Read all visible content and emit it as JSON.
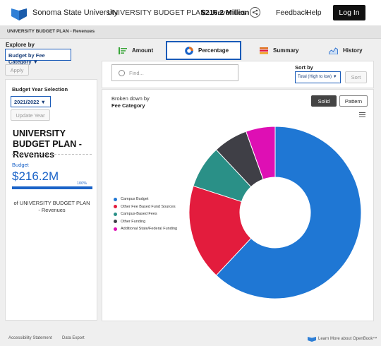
{
  "header": {
    "university": "Sonoma State University",
    "plan_title": "UNIVERSITY BUDGET PLAN - Revenues",
    "total": "$216.2 Million",
    "feedback": "Feedback",
    "help": "Help",
    "login": "Log In"
  },
  "breadcrumb": "UNIVERSITY BUDGET PLAN - Revenues",
  "explore": {
    "label": "Explore by",
    "selected": "Budget by Fee Category",
    "apply": "Apply"
  },
  "tabs": [
    {
      "label": "Amount",
      "icon": "list-icon",
      "color": "#3aa63a"
    },
    {
      "label": "Percentage",
      "icon": "donut-icon",
      "color": "#1a63c8"
    },
    {
      "label": "Summary",
      "icon": "stack-icon",
      "color": "#e07020"
    },
    {
      "label": "History",
      "icon": "area-chart-icon",
      "color": "#1a63c8"
    }
  ],
  "sidebar": {
    "year_label": "Budget Year Selection",
    "year": "2021/2022",
    "update": "Update Year",
    "title": "UNIVERSITY BUDGET PLAN - Revenues",
    "budget_label": "Budget",
    "budget_value": "$216.2M",
    "budget_percent": "100%",
    "budget_fill": 1.0,
    "note": "of UNIVERSITY BUDGET PLAN - Revenues"
  },
  "search": {
    "placeholder": "Find...",
    "sort_label": "Sort by",
    "sort_value": "Total (High to low)",
    "sort_button": "Sort"
  },
  "chart_panel": {
    "broken_down": "Broken down by",
    "category": "Fee Category",
    "solid": "Solid",
    "pattern": "Pattern"
  },
  "chart_data": {
    "type": "pie",
    "donut": true,
    "categories": [
      "Campus Budget",
      "Other Fee Based Fund Sources",
      "Campus-Based Fees",
      "Other Funding",
      "Additional State/Federal Funding"
    ],
    "values": [
      62,
      18,
      8,
      6.5,
      5.5
    ],
    "colors": [
      "#1f77d4",
      "#e31c3d",
      "#2a9087",
      "#3f3f46",
      "#de0fb4"
    ]
  },
  "footer": {
    "accessibility": "Accessibility Statement",
    "export": "Data Export",
    "openbook": "Learn More about OpenBook™"
  }
}
